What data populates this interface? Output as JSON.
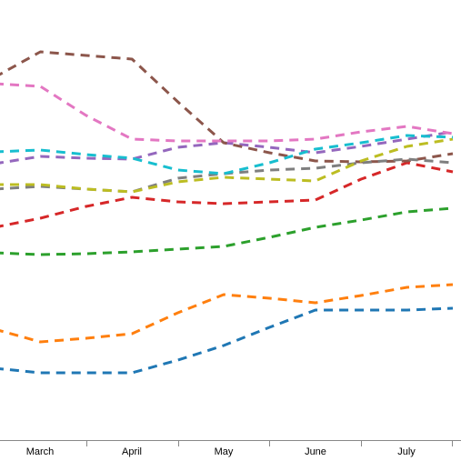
{
  "chart_data": {
    "type": "line",
    "title": "",
    "xlabel": "",
    "ylabel": "",
    "grid": false,
    "legend": "none",
    "x": [
      "",
      "March",
      "",
      "April",
      "",
      "May",
      "",
      "June",
      "",
      "July",
      ""
    ],
    "x_ticks": [
      "March",
      "April",
      "May",
      "June",
      "July"
    ],
    "ylim": [
      0,
      507
    ],
    "series": [
      {
        "color": "#1f77b4",
        "values": [
          102,
          97,
          97,
          97,
          111,
          127,
          147,
          166,
          166,
          166,
          168
        ]
      },
      {
        "color": "#ff7f0e",
        "values": [
          145,
          131,
          135,
          140,
          163,
          183,
          179,
          174,
          182,
          191,
          194
        ]
      },
      {
        "color": "#2ca02c",
        "values": [
          229,
          227,
          228,
          230,
          233,
          236,
          246,
          257,
          265,
          274,
          278
        ]
      },
      {
        "color": "#d62728",
        "values": [
          257,
          267,
          280,
          290,
          285,
          283,
          285,
          287,
          310,
          328,
          318
        ]
      },
      {
        "color": "#9467bd",
        "values": [
          327,
          335,
          333,
          332,
          345,
          350,
          345,
          339,
          346,
          354,
          362
        ]
      },
      {
        "color": "#8c564b",
        "values": [
          422,
          450,
          446,
          442,
          395,
          350,
          339,
          330,
          329,
          330,
          338
        ]
      },
      {
        "color": "#e377c2",
        "values": [
          415,
          412,
          380,
          354,
          352,
          352,
          352,
          354,
          362,
          368,
          360
        ]
      },
      {
        "color": "#7f7f7f",
        "values": [
          299,
          302,
          299,
          296,
          311,
          316,
          320,
          322,
          328,
          332,
          328
        ]
      },
      {
        "color": "#bcbd22",
        "values": [
          304,
          304,
          299,
          296,
          307,
          312,
          310,
          308,
          330,
          346,
          354
        ]
      },
      {
        "color": "#17becf",
        "values": [
          340,
          342,
          337,
          333,
          320,
          316,
          328,
          343,
          350,
          358,
          356
        ]
      }
    ]
  }
}
